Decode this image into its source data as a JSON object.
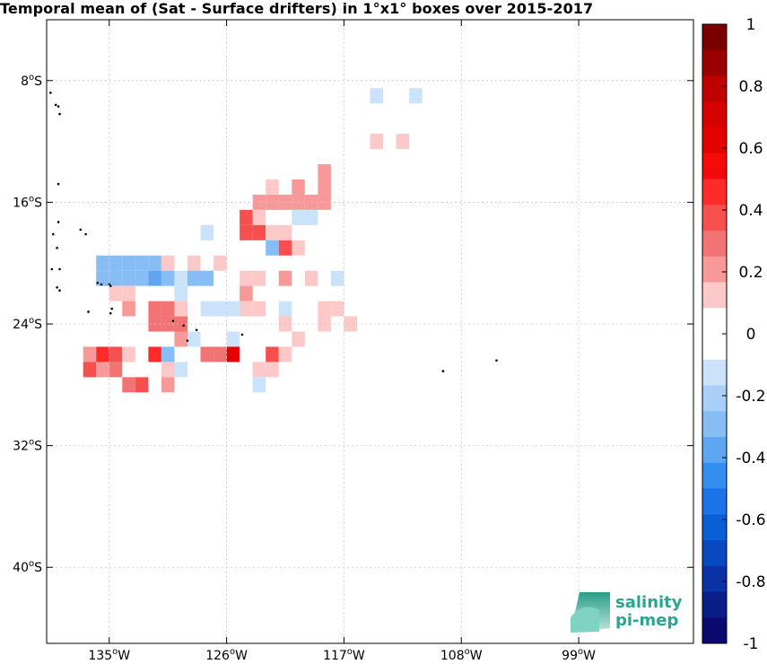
{
  "title": "Temporal mean of (Sat - Surface drifters) in 1°x1° boxes over 2015-2017",
  "map": {
    "lon_range": [
      -139.8,
      -90.2
    ],
    "lat_range": [
      -45.0,
      -4.0
    ],
    "x_ticks": [
      {
        "lon": -135,
        "deg": "135",
        "hemi": "W"
      },
      {
        "lon": -126,
        "deg": "126",
        "hemi": "W"
      },
      {
        "lon": -117,
        "deg": "117",
        "hemi": "W"
      },
      {
        "lon": -108,
        "deg": "108",
        "hemi": "W"
      },
      {
        "lon": -99,
        "deg": "99",
        "hemi": "W"
      }
    ],
    "y_ticks": [
      {
        "lat": -8,
        "deg": "8",
        "hemi": "S"
      },
      {
        "lat": -16,
        "deg": "16",
        "hemi": "S"
      },
      {
        "lat": -24,
        "deg": "24",
        "hemi": "S"
      },
      {
        "lat": -32,
        "deg": "32",
        "hemi": "S"
      },
      {
        "lat": -40,
        "deg": "40",
        "hemi": "S"
      }
    ],
    "grid": true,
    "cells": [
      [
        -112,
        -9,
        -0.15
      ],
      [
        -115,
        -9,
        -0.15
      ],
      [
        -115,
        -12,
        0.15
      ],
      [
        -113,
        -12,
        0.15
      ],
      [
        -119,
        -14,
        0.25
      ],
      [
        -121,
        -15,
        0.25
      ],
      [
        -123,
        -15,
        0.15
      ],
      [
        -119,
        -15,
        0.25
      ],
      [
        -124,
        -16,
        0.25
      ],
      [
        -123,
        -16,
        0.25
      ],
      [
        -122,
        -16,
        0.25
      ],
      [
        -121,
        -16,
        0.25
      ],
      [
        -120,
        -16,
        0.25
      ],
      [
        -119,
        -16,
        0.25
      ],
      [
        -125,
        -17,
        0.35
      ],
      [
        -124,
        -17,
        0.15
      ],
      [
        -121,
        -17,
        -0.15
      ],
      [
        -120,
        -17,
        -0.15
      ],
      [
        -125,
        -18,
        0.35
      ],
      [
        -124,
        -18,
        0.35
      ],
      [
        -123,
        -18,
        0.15
      ],
      [
        -122,
        -18,
        0.15
      ],
      [
        -128,
        -18,
        -0.15
      ],
      [
        -123,
        -19,
        -0.25
      ],
      [
        -121,
        -19,
        0.15
      ],
      [
        -122,
        -19,
        0.35
      ],
      [
        -136,
        -20,
        -0.25
      ],
      [
        -135,
        -20,
        -0.25
      ],
      [
        -134,
        -20,
        -0.25
      ],
      [
        -133,
        -20,
        -0.25
      ],
      [
        -132,
        -20,
        -0.3
      ],
      [
        -131,
        -20,
        0.15
      ],
      [
        -129,
        -20,
        0.15
      ],
      [
        -127,
        -20,
        0.15
      ],
      [
        -136,
        -21,
        -0.25
      ],
      [
        -135,
        -21,
        -0.25
      ],
      [
        -134,
        -21,
        -0.25
      ],
      [
        -133,
        -21,
        -0.25
      ],
      [
        -132,
        -21,
        -0.35
      ],
      [
        -131,
        -21,
        -0.25
      ],
      [
        -130,
        -21,
        -0.15
      ],
      [
        -129,
        -21,
        -0.25
      ],
      [
        -128,
        -21,
        -0.25
      ],
      [
        -124,
        -21,
        0.15
      ],
      [
        -125,
        -21,
        0.15
      ],
      [
        -122,
        -21,
        0.25
      ],
      [
        -120,
        -21,
        0.15
      ],
      [
        -118,
        -21,
        -0.15
      ],
      [
        -135,
        -22,
        0.15
      ],
      [
        -134,
        -22,
        0.15
      ],
      [
        -130,
        -22,
        -0.15
      ],
      [
        -125,
        -22,
        0.25
      ],
      [
        -134,
        -23,
        0.25
      ],
      [
        -132,
        -23,
        0.3
      ],
      [
        -131,
        -23,
        0.3
      ],
      [
        -130,
        -23,
        0.15
      ],
      [
        -128,
        -23,
        -0.15
      ],
      [
        -127,
        -23,
        -0.15
      ],
      [
        -126,
        -23,
        -0.15
      ],
      [
        -125,
        -23,
        0.15
      ],
      [
        -124,
        -23,
        0.15
      ],
      [
        -122,
        -23,
        -0.15
      ],
      [
        -119,
        -23,
        0.15
      ],
      [
        -118,
        -23,
        0.15
      ],
      [
        -132,
        -24,
        0.3
      ],
      [
        -131,
        -24,
        0.3
      ],
      [
        -130,
        -24,
        0.3
      ],
      [
        -122,
        -24,
        0.15
      ],
      [
        -119,
        -24,
        0.15
      ],
      [
        -117,
        -24,
        0.15
      ],
      [
        -130,
        -25,
        0.25
      ],
      [
        -129,
        -25,
        -0.15
      ],
      [
        -126,
        -25,
        -0.15
      ],
      [
        -121,
        -25,
        0.15
      ],
      [
        -137,
        -26,
        0.25
      ],
      [
        -136,
        -26,
        0.45
      ],
      [
        -135,
        -26,
        0.35
      ],
      [
        -134,
        -26,
        0.15
      ],
      [
        -132,
        -26,
        0.5
      ],
      [
        -131,
        -26,
        -0.25
      ],
      [
        -128,
        -26,
        0.3
      ],
      [
        -127,
        -26,
        0.3
      ],
      [
        -126,
        -26,
        0.6
      ],
      [
        -123,
        -26,
        0.4
      ],
      [
        -122,
        -26,
        0.15
      ],
      [
        -137,
        -27,
        0.4
      ],
      [
        -136,
        -27,
        0.25
      ],
      [
        -135,
        -27,
        0.3
      ],
      [
        -131,
        -27,
        0.15
      ],
      [
        -130,
        -27,
        -0.15
      ],
      [
        -124,
        -27,
        0.15
      ],
      [
        -123,
        -27,
        0.15
      ],
      [
        -134,
        -28,
        0.3
      ],
      [
        -133,
        -28,
        0.4
      ],
      [
        -131,
        -28,
        0.25
      ],
      [
        -124,
        -28,
        -0.15
      ]
    ],
    "islands": [
      [
        -139.5,
        -8.8
      ],
      [
        -139.1,
        -9.6
      ],
      [
        -138.9,
        -9.7
      ],
      [
        -138.8,
        -10.2
      ],
      [
        -138.9,
        -14.8
      ],
      [
        -138.9,
        -17.3
      ],
      [
        -139.3,
        -18.1
      ],
      [
        -139.0,
        -19.0
      ],
      [
        -137.2,
        -17.8
      ],
      [
        -136.8,
        -18.1
      ],
      [
        -139.4,
        -20.4
      ],
      [
        -138.8,
        -20.4
      ],
      [
        -139.0,
        -21.6
      ],
      [
        -138.8,
        -21.8
      ],
      [
        -135.9,
        -21.3
      ],
      [
        -135.6,
        -21.4
      ],
      [
        -135.0,
        -21.4
      ],
      [
        -134.9,
        -21.5
      ],
      [
        -136.6,
        -23.2
      ],
      [
        -134.9,
        -23.3
      ],
      [
        -134.8,
        -23.0
      ],
      [
        -130.1,
        -23.8
      ],
      [
        -129.3,
        -24.1
      ],
      [
        -129.0,
        -25.1
      ],
      [
        -128.3,
        -24.4
      ],
      [
        -124.8,
        -24.7
      ],
      [
        -109.4,
        -27.1
      ],
      [
        -105.3,
        -26.4
      ]
    ]
  },
  "colorbar": {
    "ticks": [
      "1",
      "0.8",
      "0.6",
      "0.4",
      "0.2",
      "0",
      "-0.2",
      "-0.4",
      "-0.6",
      "-0.8",
      "-1"
    ],
    "levels_top_to_bottom": [
      "#7a0000",
      "#9b0000",
      "#bf0000",
      "#d50000",
      "#e30000",
      "#f50a0a",
      "#ff2b2b",
      "#f74e4e",
      "#f27373",
      "#f79999",
      "#fcc8c8",
      "#ffffff",
      "#ffffff",
      "#cae3fb",
      "#a8cff7",
      "#86bdf5",
      "#5fa6f2",
      "#338ef0",
      "#1a73e8",
      "#0a5fd6",
      "#0a48c0",
      "#0a32a6",
      "#0a1e8a",
      "#0a0a6e"
    ]
  },
  "logo": {
    "line1": "salinity",
    "line2": "pi-mep"
  },
  "colors": {
    "land": "#000000",
    "grid": "#c8c8c8"
  }
}
